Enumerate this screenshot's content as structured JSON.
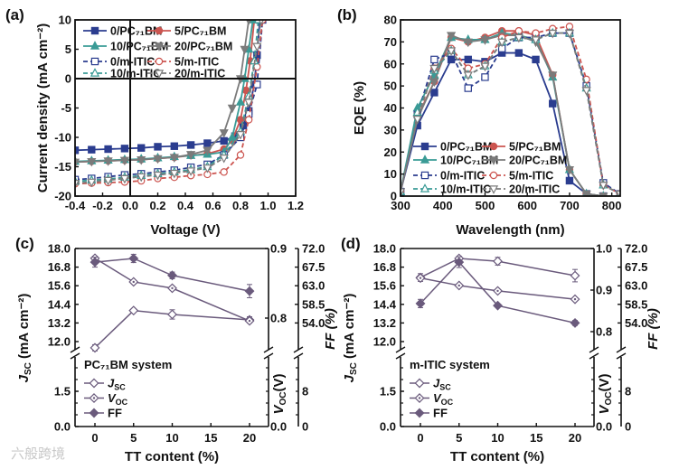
{
  "watermark": "六般跨境",
  "chart_data": [
    {
      "panel": "(a)",
      "type": "line",
      "xlabel": "Voltage (V)",
      "ylabel": "Current density (mA cm⁻²)",
      "xlim": [
        -0.4,
        1.2
      ],
      "ylim": [
        -20,
        10
      ],
      "xticks": [
        -0.4,
        -0.2,
        0,
        0.2,
        0.4,
        0.6,
        0.8,
        1.0,
        1.2
      ],
      "xticklabels": [
        "-0.4",
        "-0.2",
        "0.0",
        "0.2",
        "0.4",
        "0.6",
        "0.8",
        "1.0",
        "1.2"
      ],
      "yticks": [
        -20,
        -15,
        -10,
        -5,
        0,
        5,
        10
      ],
      "yticklabels": [
        "-20",
        "-15",
        "-10",
        "-5",
        "0",
        "5",
        "10"
      ],
      "legend": "top-left",
      "series": [
        {
          "label": "0/PC₇₁BM",
          "color": "#2b3d8f",
          "marker": "square",
          "filled": true,
          "dashed": false,
          "x": [
            -0.4,
            -0.28,
            -0.16,
            -0.04,
            0.08,
            0.2,
            0.32,
            0.44,
            0.56,
            0.68,
            0.76,
            0.82,
            0.86,
            0.9,
            0.92,
            0.94
          ],
          "y": [
            -12.2,
            -12.1,
            -12.0,
            -11.9,
            -11.8,
            -11.6,
            -11.5,
            -11.3,
            -11.0,
            -10.6,
            -9.8,
            -8.0,
            -5.5,
            -1.0,
            4.0,
            10.0
          ]
        },
        {
          "label": "5/PC₇₁BM",
          "color": "#cc5550",
          "marker": "circle",
          "filled": true,
          "dashed": false,
          "x": [
            -0.4,
            -0.28,
            -0.16,
            -0.04,
            0.08,
            0.2,
            0.32,
            0.44,
            0.56,
            0.68,
            0.74,
            0.8,
            0.84,
            0.87,
            0.9
          ],
          "y": [
            -14.2,
            -14.1,
            -14.0,
            -13.9,
            -13.8,
            -13.6,
            -13.4,
            -13.1,
            -12.8,
            -12.0,
            -10.5,
            -7.0,
            -2.0,
            3.0,
            10.0
          ]
        },
        {
          "label": "10/PC₇₁BM",
          "color": "#3a9b96",
          "marker": "triangle-up",
          "filled": true,
          "dashed": false,
          "x": [
            -0.4,
            -0.28,
            -0.16,
            -0.04,
            0.08,
            0.2,
            0.32,
            0.44,
            0.56,
            0.68,
            0.74,
            0.8,
            0.83,
            0.86,
            0.89
          ],
          "y": [
            -14.1,
            -14.0,
            -13.9,
            -13.8,
            -13.7,
            -13.5,
            -13.3,
            -13.1,
            -12.9,
            -12.5,
            -10.0,
            -4.0,
            0.0,
            5.0,
            10.0
          ]
        },
        {
          "label": "20/PC₇₁BM",
          "color": "#7b7b7b",
          "marker": "triangle-down",
          "filled": true,
          "dashed": false,
          "x": [
            -0.4,
            -0.28,
            -0.16,
            -0.04,
            0.08,
            0.2,
            0.32,
            0.44,
            0.56,
            0.68,
            0.74,
            0.8,
            0.83,
            0.86
          ],
          "y": [
            -14.2,
            -14.1,
            -14.0,
            -13.9,
            -13.8,
            -13.6,
            -13.4,
            -12.9,
            -12.2,
            -9.2,
            -5.0,
            0.0,
            5.0,
            10.0
          ]
        },
        {
          "label": "0/m-ITIC",
          "color": "#2b3d8f",
          "marker": "square",
          "filled": false,
          "dashed": true,
          "x": [
            -0.4,
            -0.28,
            -0.16,
            -0.04,
            0.08,
            0.2,
            0.32,
            0.44,
            0.56,
            0.68,
            0.8,
            0.86,
            0.92,
            0.96
          ],
          "y": [
            -17.2,
            -17.0,
            -16.7,
            -16.4,
            -16.2,
            -15.9,
            -15.6,
            -15.1,
            -14.6,
            -13.0,
            -10.0,
            -6.0,
            -1.0,
            10.0
          ]
        },
        {
          "label": "5/m-ITIC",
          "color": "#cc5550",
          "marker": "circle",
          "filled": false,
          "dashed": true,
          "x": [
            -0.4,
            -0.28,
            -0.16,
            -0.04,
            0.08,
            0.2,
            0.32,
            0.44,
            0.56,
            0.68,
            0.8,
            0.86,
            0.92,
            0.96
          ],
          "y": [
            -17.9,
            -17.8,
            -17.7,
            -17.6,
            -17.4,
            -17.0,
            -16.8,
            -16.5,
            -16.3,
            -15.9,
            -13.0,
            -7.0,
            2.0,
            10.0
          ]
        },
        {
          "label": "10/m-ITIC",
          "color": "#3a9b96",
          "marker": "triangle-up",
          "filled": false,
          "dashed": true,
          "x": [
            -0.4,
            -0.28,
            -0.16,
            -0.04,
            0.08,
            0.2,
            0.32,
            0.44,
            0.56,
            0.68,
            0.8,
            0.86,
            0.9,
            0.93
          ],
          "y": [
            -17.5,
            -17.3,
            -17.1,
            -16.8,
            -16.5,
            -16.2,
            -15.9,
            -15.5,
            -15.0,
            -13.0,
            -9.0,
            -3.0,
            3.0,
            10.0
          ]
        },
        {
          "label": "20/m-ITIC",
          "color": "#7b7b7b",
          "marker": "triangle-down",
          "filled": false,
          "dashed": true,
          "x": [
            -0.4,
            -0.28,
            -0.16,
            -0.04,
            0.08,
            0.2,
            0.32,
            0.44,
            0.56,
            0.68,
            0.8,
            0.86,
            0.92,
            0.95
          ],
          "y": [
            -17.8,
            -17.6,
            -17.3,
            -17.0,
            -16.7,
            -16.4,
            -16.1,
            -15.7,
            -15.2,
            -13.5,
            -9.5,
            -4.0,
            5.5,
            10.0
          ]
        }
      ]
    },
    {
      "panel": "(b)",
      "type": "line",
      "xlabel": "Wavelength (nm)",
      "ylabel": "EQE (%)",
      "xlim": [
        300,
        820
      ],
      "ylim": [
        0,
        80
      ],
      "xticks": [
        300,
        400,
        500,
        600,
        700,
        800
      ],
      "xticklabels": [
        "300",
        "400",
        "500",
        "600",
        "700",
        "800"
      ],
      "yticks": [
        0,
        10,
        20,
        30,
        40,
        50,
        60,
        70,
        80
      ],
      "yticklabels": [
        "0",
        "10",
        "20",
        "30",
        "40",
        "50",
        "60",
        "70",
        "80"
      ],
      "legend": "bottom-left",
      "series": [
        {
          "label": "0/PC₇₁BM",
          "color": "#2b3d8f",
          "marker": "square",
          "filled": true,
          "dashed": false,
          "x": [
            300,
            340,
            380,
            420,
            460,
            500,
            540,
            580,
            620,
            660,
            700,
            740,
            780,
            820
          ],
          "y": [
            2,
            32,
            47,
            62,
            62,
            61,
            65,
            65,
            62,
            42,
            7,
            1,
            0,
            0
          ]
        },
        {
          "label": "5/PC₇₁BM",
          "color": "#cc5550",
          "marker": "circle",
          "filled": true,
          "dashed": false,
          "x": [
            300,
            340,
            380,
            420,
            460,
            500,
            540,
            580,
            620,
            660,
            700,
            740,
            780,
            820
          ],
          "y": [
            2,
            36,
            52,
            72,
            70,
            72,
            75,
            75,
            73,
            55,
            12,
            1,
            0,
            0
          ]
        },
        {
          "label": "10/PC₇₁BM",
          "color": "#3a9b96",
          "marker": "triangle-up",
          "filled": true,
          "dashed": false,
          "x": [
            300,
            340,
            380,
            420,
            460,
            500,
            540,
            580,
            620,
            660,
            700,
            740,
            780,
            820
          ],
          "y": [
            2,
            40,
            55,
            72,
            71,
            71,
            74,
            73,
            71,
            54,
            12,
            1,
            0,
            0
          ]
        },
        {
          "label": "20/PC₇₁BM",
          "color": "#7b7b7b",
          "marker": "triangle-down",
          "filled": true,
          "dashed": false,
          "x": [
            300,
            340,
            380,
            420,
            460,
            500,
            540,
            580,
            620,
            660,
            700,
            740,
            780,
            820
          ],
          "y": [
            2,
            35,
            52,
            73,
            70,
            71,
            73,
            73,
            70,
            55,
            12,
            1,
            0,
            0
          ]
        },
        {
          "label": "0/m-ITIC",
          "color": "#2b3d8f",
          "marker": "square",
          "filled": false,
          "dashed": true,
          "x": [
            300,
            340,
            380,
            420,
            460,
            500,
            540,
            580,
            620,
            660,
            700,
            740,
            780,
            820
          ],
          "y": [
            2,
            37,
            62,
            65,
            49,
            54,
            67,
            72,
            72,
            74,
            74,
            50,
            6,
            1
          ]
        },
        {
          "label": "5/m-ITIC",
          "color": "#cc5550",
          "marker": "circle",
          "filled": false,
          "dashed": true,
          "x": [
            300,
            340,
            380,
            420,
            460,
            500,
            540,
            580,
            620,
            660,
            700,
            740,
            780,
            820
          ],
          "y": [
            2,
            37,
            58,
            67,
            58,
            60,
            72,
            75,
            74,
            76,
            77,
            53,
            5,
            1
          ]
        },
        {
          "label": "10/m-ITIC",
          "color": "#3a9b96",
          "marker": "triangle-up",
          "filled": false,
          "dashed": true,
          "x": [
            300,
            340,
            380,
            420,
            460,
            500,
            540,
            580,
            620,
            660,
            700,
            740,
            780,
            820
          ],
          "y": [
            2,
            38,
            57,
            66,
            55,
            59,
            70,
            72,
            71,
            74,
            74,
            49,
            5,
            1
          ]
        },
        {
          "label": "20/m-ITIC",
          "color": "#7b7b7b",
          "marker": "triangle-down",
          "filled": false,
          "dashed": true,
          "x": [
            300,
            340,
            380,
            420,
            460,
            500,
            540,
            580,
            620,
            660,
            700,
            740,
            780,
            820
          ],
          "y": [
            2,
            35,
            58,
            66,
            55,
            59,
            70,
            72,
            71,
            74,
            74,
            48,
            5,
            1
          ]
        }
      ]
    },
    {
      "panel": "(c)",
      "type": "line",
      "system": "PC₇₁BM system",
      "xlabel": "TT content (%)",
      "ylabel": {
        "main": "J",
        "sub": "SC",
        "unit": " (mA cm⁻²)"
      },
      "y2label": {
        "main": "V",
        "sub": "OC",
        "unit": "(V)"
      },
      "y3label": "FF (%)",
      "xticks": [
        0,
        5,
        10,
        15,
        20
      ],
      "xticklabels": [
        "0",
        "5",
        "10",
        "15",
        "20"
      ],
      "yticks_top": [
        12.0,
        13.2,
        14.4,
        15.6,
        16.8,
        18.0
      ],
      "yticklabels_top": [
        "12.0",
        "13.2",
        "14.4",
        "15.6",
        "16.8",
        "18.0"
      ],
      "yticks_bottom": [
        0,
        1.5
      ],
      "yticklabels_bottom": [
        "0.0",
        "1.5"
      ],
      "y2ticks_top": [
        0.8,
        0.9
      ],
      "y2ticklabels_top": [
        "0.8",
        "0.9"
      ],
      "y2ticklabels_bottom": [
        "0.0"
      ],
      "y3ticks_top": [
        54.0,
        58.5,
        63.0,
        67.5,
        72.0
      ],
      "y3ticklabels_top": [
        "54.0",
        "58.5",
        "63.0",
        "67.5",
        "72.0"
      ],
      "y3ticklabels_bottom": [
        "0",
        "8"
      ],
      "color": "#6a5a7c",
      "series": [
        {
          "key": "jsc",
          "legend": {
            "main": "J",
            "sub": "SC"
          },
          "marker": "diamond-open",
          "axis": "left",
          "x": [
            0,
            5,
            10,
            20
          ],
          "y": [
            11.6,
            14.0,
            13.75,
            13.4
          ],
          "err": [
            0.2,
            0.1,
            0.3,
            0.2
          ]
        },
        {
          "key": "voc",
          "legend": {
            "main": "V",
            "sub": "OC"
          },
          "marker": "diamond-dot",
          "axis": "right1",
          "x": [
            0,
            5,
            10,
            20
          ],
          "y": [
            0.886,
            0.852,
            0.843,
            0.796
          ],
          "err": [
            0.003,
            0.002,
            0.003,
            0.003
          ]
        },
        {
          "key": "ff",
          "legend": {
            "main": "FF",
            "sub": ""
          },
          "marker": "diamond-filled",
          "axis": "right2",
          "x": [
            0,
            5,
            10,
            20
          ],
          "y": [
            68.7,
            69.6,
            65.5,
            61.7
          ],
          "err": [
            1.2,
            1.0,
            0.8,
            1.6
          ]
        }
      ]
    },
    {
      "panel": "(d)",
      "type": "line",
      "system": "m-ITIC system",
      "xlabel": "TT content (%)",
      "ylabel": {
        "main": "J",
        "sub": "SC",
        "unit": " (mA cm⁻²)"
      },
      "y2label": {
        "main": "V",
        "sub": "OC",
        "unit": "(V)"
      },
      "y3label": "FF (%)",
      "xticks": [
        0,
        5,
        10,
        15,
        20
      ],
      "xticklabels": [
        "0",
        "5",
        "10",
        "15",
        "20"
      ],
      "yticks_top": [
        12.0,
        13.2,
        14.4,
        15.6,
        16.8,
        18.0
      ],
      "yticklabels_top": [
        "12.0",
        "13.2",
        "14.4",
        "15.6",
        "16.8",
        "18.0"
      ],
      "yticks_bottom": [
        0,
        1.5
      ],
      "yticklabels_bottom": [
        "0.0",
        "1.5"
      ],
      "y2ticks_top": [
        0.8,
        0.9,
        1.0
      ],
      "y2ticklabels_top": [
        "0.8",
        "0.9",
        "1.0"
      ],
      "y2ticklabels_bottom": [
        "0.0"
      ],
      "y3ticks_top": [
        54.0,
        58.5,
        63.0,
        67.5,
        72.0
      ],
      "y3ticklabels_top": [
        "54.0",
        "58.5",
        "63.0",
        "67.5",
        "72.0"
      ],
      "y3ticklabels_bottom": [
        "0",
        "8"
      ],
      "color": "#6a5a7c",
      "series": [
        {
          "key": "jsc",
          "legend": {
            "main": "J",
            "sub": "SC"
          },
          "marker": "diamond-open",
          "axis": "left",
          "x": [
            0,
            5,
            10,
            20
          ],
          "y": [
            16.13,
            17.36,
            17.18,
            16.25
          ],
          "err": [
            0.25,
            0.15,
            0.25,
            0.4
          ]
        },
        {
          "key": "voc",
          "legend": {
            "main": "V",
            "sub": "OC"
          },
          "marker": "diamond-dot",
          "axis": "right1",
          "x": [
            0,
            5,
            10,
            20
          ],
          "y": [
            0.929,
            0.911,
            0.898,
            0.878
          ],
          "err": [
            0.002,
            0.002,
            0.002,
            0.002
          ]
        },
        {
          "key": "ff",
          "legend": {
            "main": "FF",
            "sub": ""
          },
          "marker": "diamond-filled",
          "axis": "right2",
          "x": [
            0,
            5,
            10,
            20
          ],
          "y": [
            58.7,
            68.7,
            58.2,
            54.0
          ],
          "err": [
            1.0,
            1.3,
            0.4,
            0.6
          ]
        }
      ]
    }
  ]
}
